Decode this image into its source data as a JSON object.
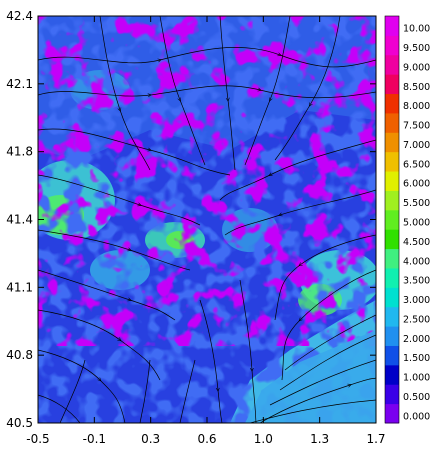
{
  "chart_data": {
    "type": "heatmap",
    "title": "",
    "xlabel": "",
    "ylabel": "",
    "xlim": [
      -0.5,
      1.7
    ],
    "ylim": [
      40.5,
      42.4
    ],
    "x_ticks": [
      "-0.5",
      "-0.1",
      "0.3",
      "0.6",
      "1.0",
      "1.3",
      "1.7"
    ],
    "y_ticks": [
      "40.5",
      "40.8",
      "41.1",
      "41.4",
      "41.8",
      "42.1",
      "42.4"
    ],
    "colorbar": {
      "labels": [
        "0.000",
        "0.500",
        "1.000",
        "1.500",
        "2.000",
        "2.500",
        "3.000",
        "3.500",
        "4.000",
        "4.500",
        "5.000",
        "5.500",
        "6.000",
        "6.500",
        "7.000",
        "7.500",
        "8.000",
        "8.500",
        "9.000",
        "9.500",
        "10.00"
      ],
      "colors": [
        "#7a00f0",
        "#3a00e8",
        "#0000c8",
        "#1050e8",
        "#2090f0",
        "#20b8f0",
        "#00e0d0",
        "#10f0b0",
        "#40f080",
        "#30e000",
        "#60ee20",
        "#a0f020",
        "#e0f000",
        "#f0c000",
        "#f09000",
        "#f06000",
        "#f03000",
        "#f00060",
        "#f000a0",
        "#f000d0",
        "#e000f0"
      ]
    },
    "overlay": "streamlines"
  }
}
